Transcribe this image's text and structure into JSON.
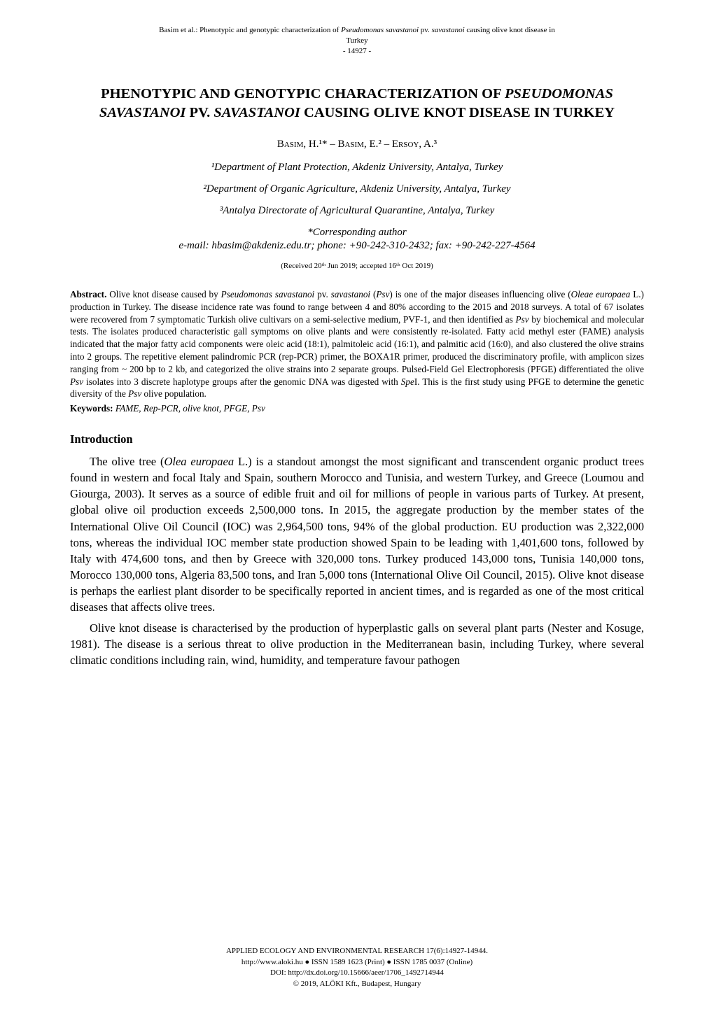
{
  "running_head": {
    "line1_pre": "Basim et al.: Phenotypic and genotypic characterization of ",
    "line1_it1": "Pseudomonas savastanoi",
    "line1_mid": " pv. ",
    "line1_it2": "savastanoi",
    "line1_post": " causing olive knot disease in",
    "line2": "Turkey",
    "line3": "- 14927 -"
  },
  "title": {
    "pre": "PHENOTYPIC AND GENOTYPIC CHARACTERIZATION OF ",
    "it1": "PSEUDOMONAS SAVASTANOI",
    "mid": " PV. ",
    "it2": "SAVASTANOI",
    "post": " CAUSING OLIVE KNOT DISEASE IN TURKEY"
  },
  "authors": "Basim, H.¹* – Basim, E.² – Ersoy, A.³",
  "affiliations": {
    "a1": "¹Department of Plant Protection, Akdeniz University, Antalya, Turkey",
    "a2": "²Department of Organic Agriculture, Akdeniz University, Antalya, Turkey",
    "a3": "³Antalya Directorate of Agricultural Quarantine, Antalya, Turkey"
  },
  "corresponding": {
    "label": "*Corresponding author",
    "email": "e-mail: hbasim@akdeniz.edu.tr; phone: +90-242-310-2432; fax: +90-242-227-4564"
  },
  "received": "(Received 20ᵗʰ Jun 2019; accepted 16ᵗʰ Oct 2019)",
  "abstract": {
    "label": "Abstract.",
    "t1": " Olive knot disease caused by ",
    "i1": "Pseudomonas savastanoi",
    "t2": " pv. ",
    "i2": "savastanoi",
    "t3": " (",
    "i3": "Psv",
    "t4": ") is one of the major diseases influencing olive (",
    "i4": "Oleae europaea",
    "t5": " L.) production in Turkey. The disease incidence rate was found to range between 4 and 80% according to the 2015 and 2018 surveys. A total of 67 isolates were recovered from 7 symptomatic Turkish olive cultivars on a semi-selective medium, PVF-1, and then identified as ",
    "i5": "Psv",
    "t6": " by biochemical and molecular tests. The isolates produced characteristic gall symptoms on olive plants and were consistently re-isolated. Fatty acid methyl ester (FAME) analysis indicated that the major fatty acid components were oleic acid (18:1), palmitoleic acid (16:1), and palmitic acid (16:0), and also clustered the olive strains into 2 groups. The repetitive element palindromic PCR (rep-PCR) primer, the BOXA1R primer, produced the discriminatory profile, with amplicon sizes ranging from ~ 200 bp to 2 kb, and categorized the olive strains into 2 separate groups. Pulsed-Field Gel Electrophoresis (PFGE) differentiated the olive ",
    "i6": "Psv",
    "t7": " isolates into 3 discrete haplotype groups after the genomic DNA was digested with ",
    "i7": "Spe",
    "t8": "I. This is the first study using PFGE to determine the genetic diversity of the ",
    "i8": "Psv",
    "t9": " olive population."
  },
  "keywords": {
    "label": "Keywords:",
    "text": " FAME, Rep-PCR, olive knot, PFGE, Psv"
  },
  "section": {
    "heading": "Introduction"
  },
  "para1": {
    "t1": "The olive tree (",
    "i1": "Olea europaea",
    "t2": " L.) is a standout amongst the most significant and transcendent organic product trees found in western and focal Italy and Spain, southern Morocco and Tunisia, and western Turkey, and Greece (Loumou and Giourga, 2003). It serves as a source of edible fruit and oil for millions of people in various parts of Turkey. At present, global olive oil production exceeds 2,500,000 tons. In 2015, the aggregate production by the member states of the International Olive Oil Council (IOC) was 2,964,500 tons, 94% of the global production. EU production was 2,322,000 tons, whereas the individual IOC member state production showed Spain to be leading with 1,401,600 tons, followed by Italy with 474,600 tons, and then by Greece with 320,000 tons. Turkey produced 143,000 tons, Tunisia 140,000 tons, Morocco 130,000 tons, Algeria 83,500 tons, and Iran 5,000 tons (International Olive Oil Council, 2015). Olive knot disease is perhaps the earliest plant disorder to be specifically reported in ancient times, and is regarded as one of the most critical diseases that affects olive trees."
  },
  "para2": {
    "t1": "Olive knot disease is characterised by the production of hyperplastic galls on several plant parts (Nester and Kosuge, 1981). The disease is a serious threat to olive production in the Mediterranean basin, including Turkey, where several climatic conditions including rain, wind, humidity, and temperature favour pathogen"
  },
  "footer": {
    "l1": "APPLIED ECOLOGY AND ENVIRONMENTAL RESEARCH 17(6):14927-14944.",
    "l2": "http://www.aloki.hu ● ISSN 1589 1623 (Print) ● ISSN 1785 0037 (Online)",
    "l3": "DOI: http://dx.doi.org/10.15666/aeer/1706_1492714944",
    "l4": "© 2019, ALÖKI Kft., Budapest, Hungary"
  }
}
